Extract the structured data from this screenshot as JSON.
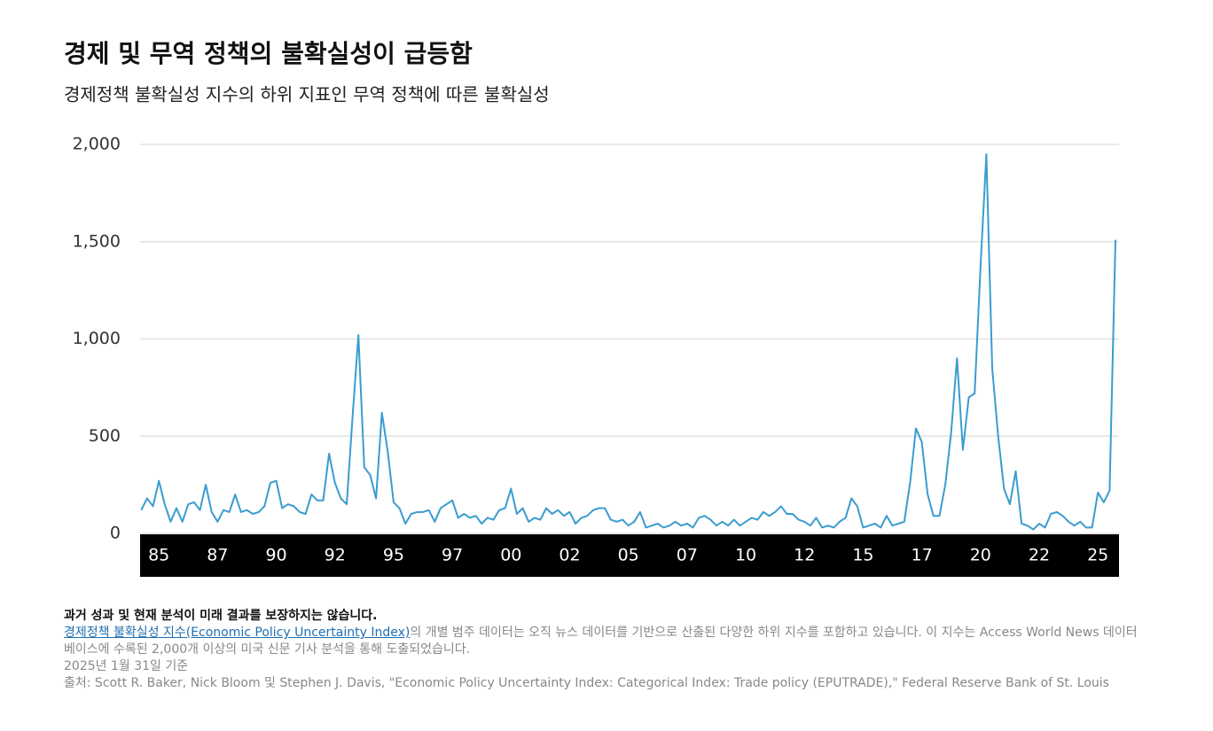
{
  "chart_data": {
    "type": "line",
    "title": "경제 및 무역 정책의 불확실성이 급등함",
    "subtitle": "경제정책 불확실성 지수의 하위 지표인 무역 정책에 따른 불확실성",
    "xlim": [
      1984.2,
      2025.9
    ],
    "xticks": [
      {
        "value": 1985,
        "label": "85"
      },
      {
        "value": 1987.5,
        "label": "87"
      },
      {
        "value": 1990,
        "label": "90"
      },
      {
        "value": 1992.5,
        "label": "92"
      },
      {
        "value": 1995,
        "label": "95"
      },
      {
        "value": 1997.5,
        "label": "97"
      },
      {
        "value": 2000,
        "label": "00"
      },
      {
        "value": 2002.5,
        "label": "02"
      },
      {
        "value": 2005,
        "label": "05"
      },
      {
        "value": 2007.5,
        "label": "07"
      },
      {
        "value": 2010,
        "label": "10"
      },
      {
        "value": 2012.5,
        "label": "12"
      },
      {
        "value": 2015,
        "label": "15"
      },
      {
        "value": 2017.5,
        "label": "17"
      },
      {
        "value": 2020,
        "label": "20"
      },
      {
        "value": 2022.5,
        "label": "22"
      },
      {
        "value": 2025,
        "label": "25"
      }
    ],
    "ylim": [
      0,
      2000
    ],
    "yticks": [
      0,
      {
        "value": 500,
        "label": "500"
      },
      {
        "value": 1000,
        "label": "1,000"
      },
      {
        "value": 1500,
        "label": "1,500"
      },
      {
        "value": 2000,
        "label": "2,000"
      }
    ],
    "grid": true,
    "color": "#3a9ccf",
    "x": [
      1984.25,
      1984.5,
      1984.75,
      1985,
      1985.25,
      1985.5,
      1985.75,
      1986,
      1986.25,
      1986.5,
      1986.75,
      1987,
      1987.25,
      1987.5,
      1987.75,
      1988,
      1988.25,
      1988.5,
      1988.75,
      1989,
      1989.25,
      1989.5,
      1989.75,
      1990,
      1990.25,
      1990.5,
      1990.75,
      1991,
      1991.25,
      1991.5,
      1991.75,
      1992,
      1992.25,
      1992.5,
      1992.75,
      1993,
      1993.25,
      1993.5,
      1993.75,
      1994,
      1994.25,
      1994.5,
      1994.75,
      1995,
      1995.25,
      1995.5,
      1995.75,
      1996,
      1996.25,
      1996.5,
      1996.75,
      1997,
      1997.25,
      1997.5,
      1997.75,
      1998,
      1998.25,
      1998.5,
      1998.75,
      1999,
      1999.25,
      1999.5,
      1999.75,
      2000,
      2000.25,
      2000.5,
      2000.75,
      2001,
      2001.25,
      2001.5,
      2001.75,
      2002,
      2002.25,
      2002.5,
      2002.75,
      2003,
      2003.25,
      2003.5,
      2003.75,
      2004,
      2004.25,
      2004.5,
      2004.75,
      2005,
      2005.25,
      2005.5,
      2005.75,
      2006,
      2006.25,
      2006.5,
      2006.75,
      2007,
      2007.25,
      2007.5,
      2007.75,
      2008,
      2008.25,
      2008.5,
      2008.75,
      2009,
      2009.25,
      2009.5,
      2009.75,
      2010,
      2010.25,
      2010.5,
      2010.75,
      2011,
      2011.25,
      2011.5,
      2011.75,
      2012,
      2012.25,
      2012.5,
      2012.75,
      2013,
      2013.25,
      2013.5,
      2013.75,
      2014,
      2014.25,
      2014.5,
      2014.75,
      2015,
      2015.25,
      2015.5,
      2015.75,
      2016,
      2016.25,
      2016.5,
      2016.75,
      2017,
      2017.25,
      2017.5,
      2017.75,
      2018,
      2018.25,
      2018.5,
      2018.75,
      2019,
      2019.25,
      2019.5,
      2019.75,
      2020,
      2020.25,
      2020.5,
      2020.75,
      2021,
      2021.25,
      2021.5,
      2021.75,
      2022,
      2022.25,
      2022.5,
      2022.75,
      2023,
      2023.25,
      2023.5,
      2023.75,
      2024,
      2024.25,
      2024.5,
      2024.75,
      2025,
      2025.25,
      2025.5,
      2025.75
    ],
    "values": [
      120,
      180,
      140,
      270,
      150,
      60,
      130,
      60,
      150,
      160,
      120,
      250,
      110,
      60,
      120,
      110,
      200,
      110,
      120,
      100,
      110,
      140,
      260,
      270,
      130,
      150,
      140,
      110,
      100,
      200,
      170,
      170,
      410,
      260,
      180,
      150,
      600,
      1020,
      340,
      300,
      180,
      620,
      420,
      160,
      130,
      50,
      100,
      110,
      110,
      120,
      60,
      130,
      150,
      170,
      80,
      100,
      80,
      90,
      50,
      80,
      70,
      120,
      130,
      230,
      100,
      130,
      60,
      80,
      70,
      130,
      100,
      120,
      90,
      110,
      50,
      80,
      90,
      120,
      130,
      130,
      70,
      60,
      70,
      40,
      60,
      110,
      30,
      40,
      50,
      30,
      40,
      60,
      40,
      50,
      30,
      80,
      90,
      70,
      40,
      60,
      40,
      70,
      40,
      60,
      80,
      70,
      110,
      90,
      110,
      140,
      100,
      100,
      70,
      60,
      40,
      80,
      30,
      40,
      30,
      60,
      80,
      180,
      140,
      30,
      40,
      50,
      30,
      90,
      40,
      50,
      60,
      260,
      540,
      470,
      200,
      90,
      90,
      250,
      520,
      900,
      430,
      700,
      720,
      1370,
      1950,
      850,
      500,
      230,
      150,
      320,
      50,
      40,
      20,
      50,
      30,
      100,
      110,
      90,
      60,
      40,
      60,
      30,
      30,
      210,
      160,
      220,
      1510
    ]
  },
  "footer": {
    "disclaimer": "과거 성과 및 현재 분석이 미래 결과를 보장하지는 않습니다.",
    "link": "경제정책 불확실성 지수(Economic Policy Uncertainty Index)",
    "description": "의 개별 범주 데이터는 오직 뉴스 데이터를 기반으로 산출된 다양한 하위 지수를 포함하고 있습니다. 이 지수는 Access World News 데이터베이스에 수록된 2,000개 이상의 미국 신문 기사 분석을 통해 도출되었습니다.",
    "date": "2025년 1월 31일 기준",
    "source": "출처: Scott R. Baker, Nick Bloom 및 Stephen J. Davis, \"Economic Policy Uncertainty Index: Categorical Index: Trade policy (EPUTRADE),\" Federal Reserve Bank of St. Louis"
  }
}
